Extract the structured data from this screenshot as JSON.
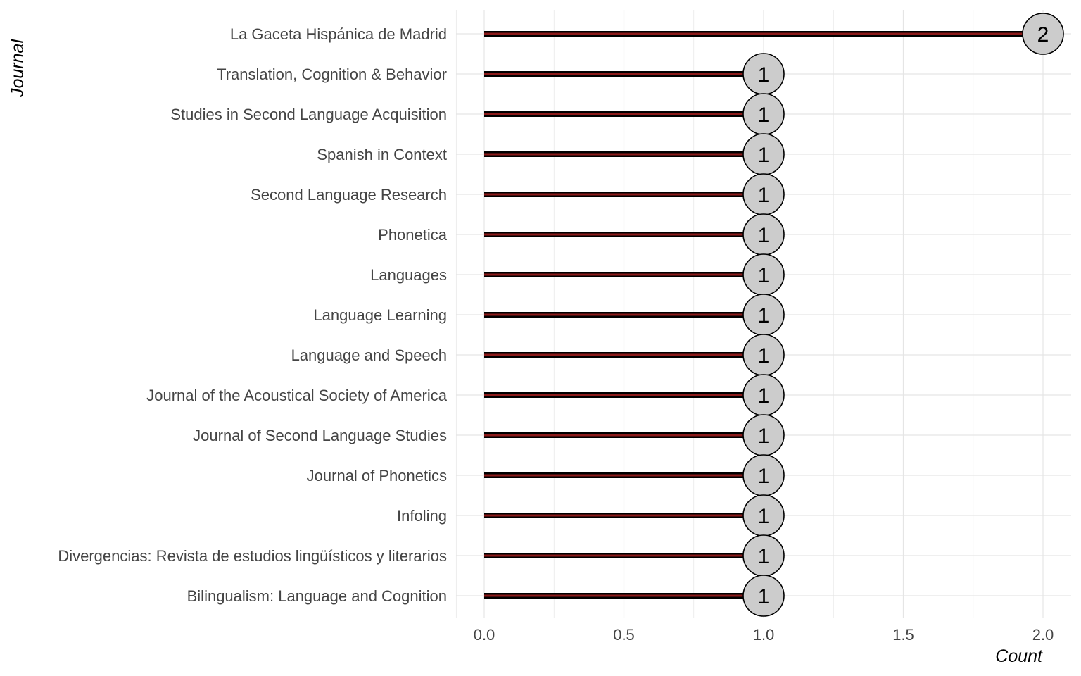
{
  "chart_data": {
    "type": "lollipop",
    "title": "",
    "xlabel": "Count",
    "ylabel": "Journal",
    "xlim": [
      0,
      2.1
    ],
    "x_ticks": [
      "0.0",
      "0.5",
      "1.0",
      "1.5",
      "2.0"
    ],
    "grid": true,
    "categories": [
      "La Gaceta Hispánica de Madrid",
      "Translation, Cognition & Behavior",
      "Studies in Second Language Acquisition",
      "Spanish in Context",
      "Second Language Research",
      "Phonetica",
      "Languages",
      "Language Learning",
      "Language and Speech",
      "Journal of the Acoustical Society of America",
      "Journal of Second Language Studies",
      "Journal of Phonetics",
      "Infoling",
      "Divergencias: Revista de estudios lingüísticos y literarios",
      "Bilingualism: Language and Cognition"
    ],
    "values": [
      2,
      1,
      1,
      1,
      1,
      1,
      1,
      1,
      1,
      1,
      1,
      1,
      1,
      1,
      1
    ],
    "data_labels": [
      "2",
      "1",
      "1",
      "1",
      "1",
      "1",
      "1",
      "1",
      "1",
      "1",
      "1",
      "1",
      "1",
      "1",
      "1"
    ],
    "colors": {
      "stem_outline": "#000000",
      "stem_fill": "#8b1a1a",
      "dot_fill": "#cccccc",
      "dot_stroke": "#000000",
      "grid": "#e5e5e5"
    }
  }
}
